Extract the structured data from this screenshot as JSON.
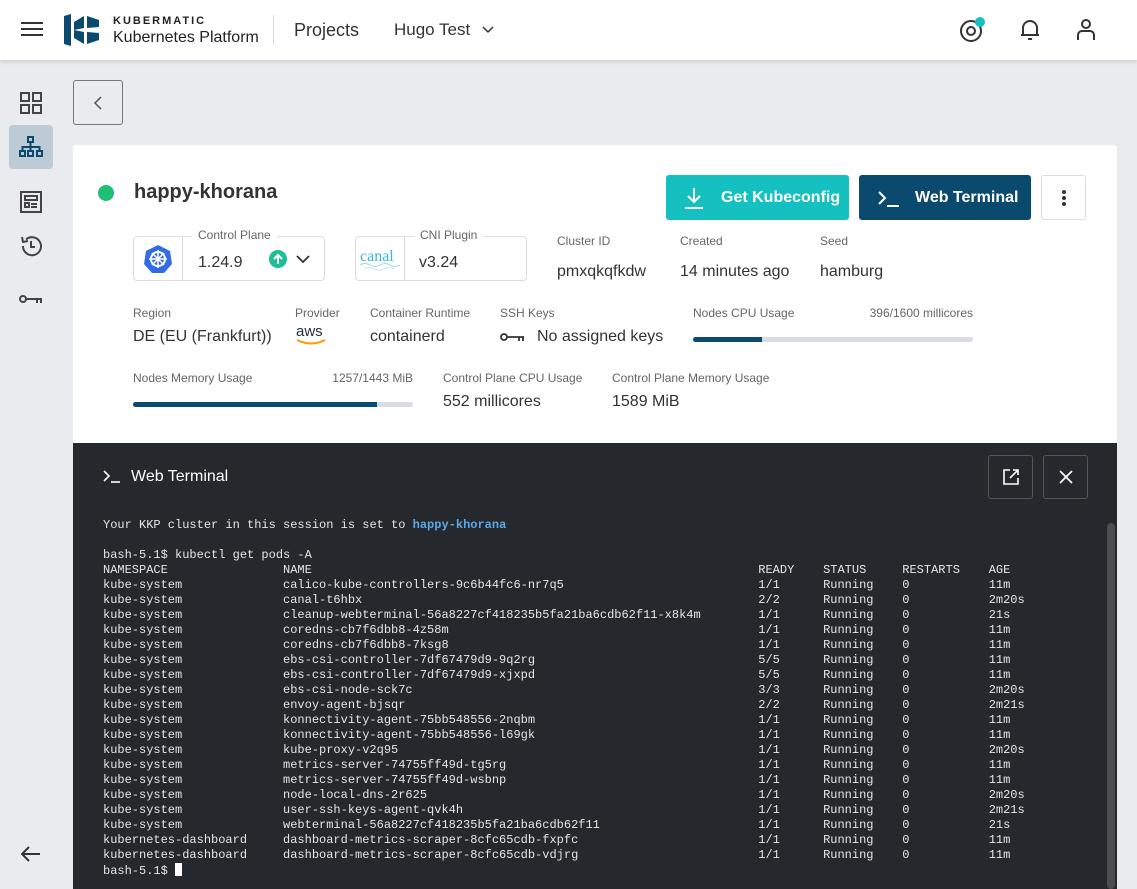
{
  "topbar": {
    "brand_top": "KUBERMATIC",
    "brand_bottom": "Kubernetes Platform",
    "projects": "Projects",
    "project": "Hugo Test"
  },
  "colors": {
    "accent": "#14c0c0",
    "primary": "#0a4a6e",
    "status_ok": "#1fbf75"
  },
  "cluster": {
    "name": "happy-khorana",
    "status": "running",
    "get_kubeconfig": "Get Kubeconfig",
    "web_terminal": "Web Terminal",
    "control_plane": {
      "label": "Control Plane",
      "value": "1.24.9"
    },
    "cni": {
      "label": "CNI Plugin",
      "value": "v3.24",
      "logo": "canal"
    },
    "cluster_id": {
      "label": "Cluster ID",
      "value": "pmxqkqfkdw"
    },
    "created": {
      "label": "Created",
      "value": "14 minutes ago"
    },
    "seed": {
      "label": "Seed",
      "value": "hamburg"
    },
    "region": {
      "label": "Region",
      "value": "DE (EU (Frankfurt))"
    },
    "provider": {
      "label": "Provider",
      "logo": "aws"
    },
    "runtime": {
      "label": "Container Runtime",
      "value": "containerd"
    },
    "ssh": {
      "label": "SSH Keys",
      "value": "No assigned keys"
    },
    "nodes_cpu": {
      "label": "Nodes CPU Usage",
      "value": "396/1600 millicores",
      "fraction": 0.2475
    },
    "nodes_mem": {
      "label": "Nodes Memory Usage",
      "value": "1257/1443 MiB",
      "fraction": 0.871
    },
    "cp_cpu": {
      "label": "Control Plane CPU Usage",
      "value": "552 millicores"
    },
    "cp_mem": {
      "label": "Control Plane Memory Usage",
      "value": "1589 MiB"
    }
  },
  "terminal": {
    "title": "Web Terminal",
    "intro": "Your KKP cluster in this session is set to ",
    "intro_cluster": "happy-khorana",
    "command": "bash-5.1$ kubectl get pods -A",
    "prompt": "bash-5.1$ ",
    "headers": [
      "NAMESPACE",
      "NAME",
      "READY",
      "STATUS",
      "RESTARTS",
      "AGE"
    ],
    "rows": [
      [
        "kube-system",
        "calico-kube-controllers-9c6b44fc6-nr7q5",
        "1/1",
        "Running",
        "0",
        "11m"
      ],
      [
        "kube-system",
        "canal-t6hbx",
        "2/2",
        "Running",
        "0",
        "2m20s"
      ],
      [
        "kube-system",
        "cleanup-webterminal-56a8227cf418235b5fa21ba6cdb62f11-x8k4m",
        "1/1",
        "Running",
        "0",
        "21s"
      ],
      [
        "kube-system",
        "coredns-cb7f6dbb8-4z58m",
        "1/1",
        "Running",
        "0",
        "11m"
      ],
      [
        "kube-system",
        "coredns-cb7f6dbb8-7ksg8",
        "1/1",
        "Running",
        "0",
        "11m"
      ],
      [
        "kube-system",
        "ebs-csi-controller-7df67479d9-9q2rg",
        "5/5",
        "Running",
        "0",
        "11m"
      ],
      [
        "kube-system",
        "ebs-csi-controller-7df67479d9-xjxpd",
        "5/5",
        "Running",
        "0",
        "11m"
      ],
      [
        "kube-system",
        "ebs-csi-node-sck7c",
        "3/3",
        "Running",
        "0",
        "2m20s"
      ],
      [
        "kube-system",
        "envoy-agent-bjsqr",
        "2/2",
        "Running",
        "0",
        "2m21s"
      ],
      [
        "kube-system",
        "konnectivity-agent-75bb548556-2nqbm",
        "1/1",
        "Running",
        "0",
        "11m"
      ],
      [
        "kube-system",
        "konnectivity-agent-75bb548556-l69gk",
        "1/1",
        "Running",
        "0",
        "11m"
      ],
      [
        "kube-system",
        "kube-proxy-v2q95",
        "1/1",
        "Running",
        "0",
        "2m20s"
      ],
      [
        "kube-system",
        "metrics-server-74755ff49d-tg5rg",
        "1/1",
        "Running",
        "0",
        "11m"
      ],
      [
        "kube-system",
        "metrics-server-74755ff49d-wsbnp",
        "1/1",
        "Running",
        "0",
        "11m"
      ],
      [
        "kube-system",
        "node-local-dns-2r625",
        "1/1",
        "Running",
        "0",
        "2m20s"
      ],
      [
        "kube-system",
        "user-ssh-keys-agent-qvk4h",
        "1/1",
        "Running",
        "0",
        "2m21s"
      ],
      [
        "kube-system",
        "webterminal-56a8227cf418235b5fa21ba6cdb62f11",
        "1/1",
        "Running",
        "0",
        "21s"
      ],
      [
        "kubernetes-dashboard",
        "dashboard-metrics-scraper-8cfc65cdb-fxpfc",
        "1/1",
        "Running",
        "0",
        "11m"
      ],
      [
        "kubernetes-dashboard",
        "dashboard-metrics-scraper-8cfc65cdb-vdjrg",
        "1/1",
        "Running",
        "0",
        "11m"
      ]
    ]
  }
}
